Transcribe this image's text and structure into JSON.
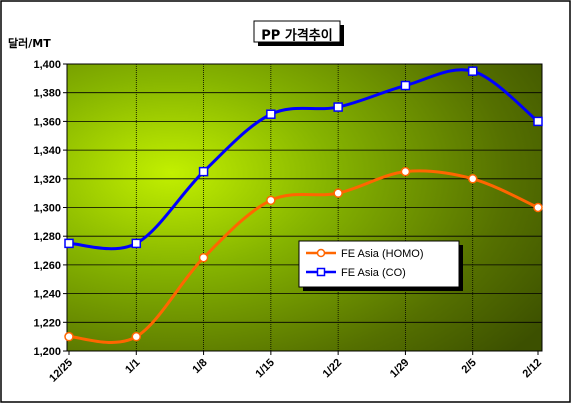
{
  "chart_data": {
    "type": "line",
    "title": "PP 가격추이",
    "ylabel": "달러/MT",
    "xlabel": "",
    "categories": [
      "12/25",
      "1/1",
      "1/8",
      "1/15",
      "1/22",
      "1/29",
      "2/5",
      "2/12"
    ],
    "ylim": [
      1200,
      1400
    ],
    "yticks": [
      "1,200",
      "1,220",
      "1,240",
      "1,260",
      "1,280",
      "1,300",
      "1,320",
      "1,340",
      "1,360",
      "1,380",
      "1,400"
    ],
    "grid": true,
    "legend": "center-right",
    "series": [
      {
        "name": "FE Asia (HOMO)",
        "color": "#ff6600",
        "marker": "circle",
        "values": [
          1210,
          1210,
          1265,
          1305,
          1310,
          1325,
          1320,
          1300
        ]
      },
      {
        "name": "FE Asia (CO)",
        "color": "#0000ff",
        "marker": "square",
        "values": [
          1275,
          1275,
          1325,
          1365,
          1370,
          1385,
          1395,
          1360
        ]
      }
    ]
  }
}
